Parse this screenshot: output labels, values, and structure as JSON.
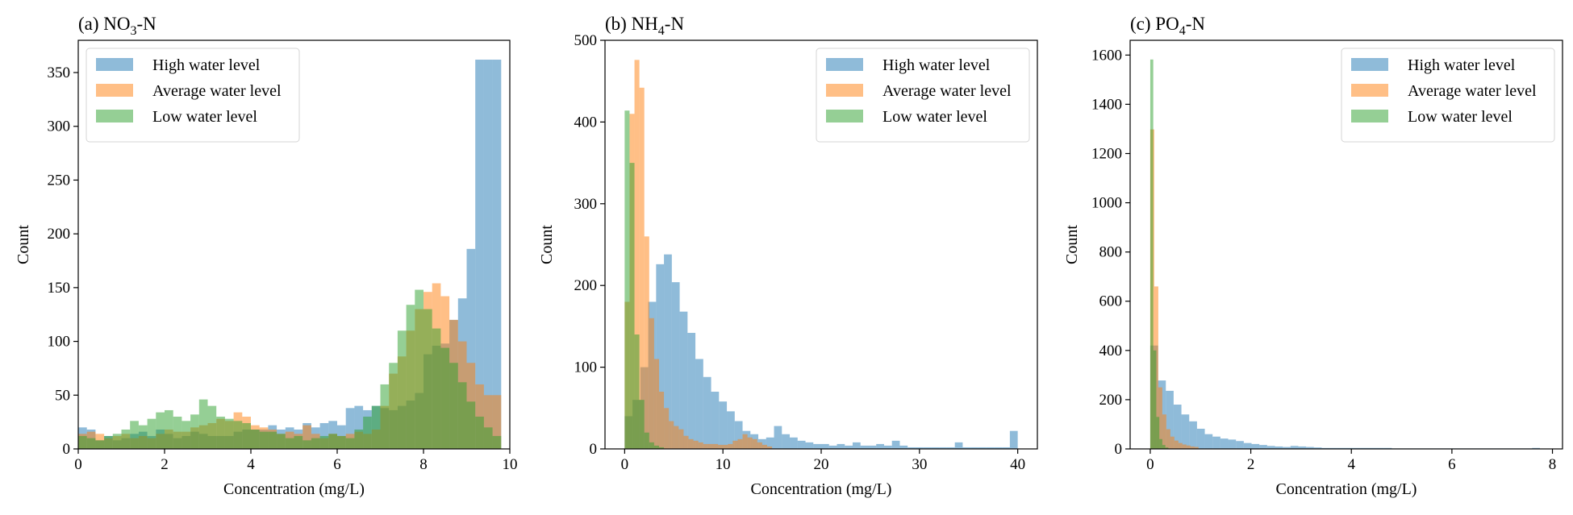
{
  "figure": {
    "colors": {
      "high": "#1f77b4",
      "average": "#ff7f0e",
      "low": "#2ca02c"
    },
    "bar_opacity": 0.5
  },
  "chart_data": [
    {
      "type": "histogram",
      "title_prefix": "(a) NO",
      "title_sub": "3",
      "title_suffix": "-N",
      "xlabel": "Concentration (mg/L)",
      "ylabel": "Count",
      "xlim": [
        0,
        10
      ],
      "ylim": [
        0,
        380
      ],
      "xticks": [
        0,
        2,
        4,
        6,
        8,
        10
      ],
      "yticks": [
        0,
        50,
        100,
        150,
        200,
        250,
        300,
        350
      ],
      "legend_position": "top-left",
      "grid": false,
      "series": [
        {
          "name": "High water level",
          "color_key": "high",
          "bin_start": 0.0,
          "bin_width": 0.2,
          "counts": [
            20,
            18,
            8,
            12,
            8,
            10,
            14,
            16,
            12,
            18,
            14,
            10,
            12,
            16,
            14,
            12,
            12,
            12,
            16,
            18,
            18,
            18,
            22,
            18,
            20,
            18,
            24,
            20,
            24,
            26,
            22,
            38,
            40,
            36,
            40,
            38,
            36,
            40,
            45,
            52,
            88,
            96,
            98,
            120,
            140,
            186,
            362,
            362,
            362,
            0
          ]
        },
        {
          "name": "Average water level",
          "color_key": "average",
          "bin_start": 0.0,
          "bin_width": 0.2,
          "counts": [
            14,
            16,
            14,
            10,
            12,
            14,
            10,
            12,
            10,
            14,
            18,
            16,
            16,
            20,
            22,
            24,
            28,
            26,
            34,
            30,
            22,
            20,
            18,
            14,
            16,
            14,
            22,
            14,
            10,
            14,
            12,
            14,
            16,
            14,
            18,
            40,
            70,
            86,
            110,
            130,
            146,
            154,
            142,
            120,
            100,
            80,
            60,
            50,
            50,
            0
          ]
        },
        {
          "name": "Low water level",
          "color_key": "low",
          "bin_start": 0.0,
          "bin_width": 0.2,
          "counts": [
            12,
            10,
            8,
            12,
            14,
            18,
            26,
            22,
            28,
            34,
            36,
            30,
            26,
            32,
            46,
            40,
            30,
            28,
            26,
            24,
            18,
            16,
            16,
            14,
            10,
            12,
            8,
            10,
            12,
            14,
            12,
            10,
            18,
            30,
            40,
            60,
            80,
            110,
            134,
            148,
            130,
            112,
            94,
            80,
            62,
            44,
            30,
            20,
            12,
            0
          ]
        }
      ]
    },
    {
      "type": "histogram",
      "title_prefix": "(b) NH",
      "title_sub": "4",
      "title_suffix": "-N",
      "xlabel": "Concentration (mg/L)",
      "ylabel": "Count",
      "xlim": [
        -2,
        42
      ],
      "ylim": [
        0,
        500
      ],
      "xticks": [
        0,
        10,
        20,
        30,
        40
      ],
      "yticks": [
        0,
        100,
        200,
        300,
        400,
        500
      ],
      "legend_position": "top-right",
      "grid": false,
      "series": [
        {
          "name": "High water level",
          "color_key": "high",
          "bin_start": 0.0,
          "bin_width": 0.8,
          "counts": [
            40,
            60,
            100,
            180,
            226,
            238,
            204,
            168,
            142,
            110,
            88,
            70,
            58,
            46,
            34,
            22,
            18,
            12,
            14,
            28,
            18,
            14,
            10,
            8,
            6,
            6,
            4,
            6,
            4,
            8,
            4,
            4,
            6,
            4,
            10,
            4,
            2,
            2,
            2,
            2,
            2,
            2,
            8,
            2,
            2,
            2,
            2,
            2,
            2,
            22
          ]
        },
        {
          "name": "Average water level",
          "color_key": "average",
          "bin_start": 0.0,
          "bin_width": 0.5,
          "counts": [
            180,
            410,
            476,
            442,
            260,
            160,
            110,
            70,
            50,
            34,
            28,
            24,
            16,
            12,
            10,
            8,
            6,
            6,
            6,
            5,
            5,
            6,
            10,
            12,
            18,
            14,
            12,
            8,
            5,
            3
          ]
        },
        {
          "name": "Low water level",
          "color_key": "low",
          "bin_start": 0.0,
          "bin_width": 0.5,
          "counts": [
            414,
            350,
            140,
            60,
            20,
            8,
            4,
            2
          ]
        }
      ]
    },
    {
      "type": "histogram",
      "title_prefix": "(c) PO",
      "title_sub": "4",
      "title_suffix": "-N",
      "xlabel": "Concentration (mg/L)",
      "ylabel": "Count",
      "xlim": [
        -0.4,
        8.2
      ],
      "ylim": [
        0,
        1660
      ],
      "xticks": [
        0,
        2,
        4,
        6,
        8
      ],
      "yticks": [
        0,
        200,
        400,
        600,
        800,
        1000,
        1200,
        1400,
        1600
      ],
      "legend_position": "top-right",
      "grid": false,
      "series": [
        {
          "name": "High water level",
          "color_key": "high",
          "bin_start": 0.0,
          "bin_width": 0.155,
          "counts": [
            420,
            278,
            236,
            180,
            140,
            112,
            82,
            60,
            50,
            42,
            38,
            32,
            24,
            20,
            16,
            12,
            10,
            8,
            12,
            10,
            8,
            6,
            4,
            4,
            4,
            4,
            4,
            4,
            4,
            4,
            4,
            2,
            2,
            2,
            2,
            2,
            2,
            2,
            2,
            2,
            2,
            2,
            2,
            2,
            2,
            2,
            2,
            2,
            2,
            4
          ]
        },
        {
          "name": "Average water level",
          "color_key": "average",
          "bin_start": 0.0,
          "bin_width": 0.08,
          "counts": [
            1298,
            660,
            250,
            140,
            80,
            50,
            34,
            24,
            18,
            14,
            10,
            8
          ]
        },
        {
          "name": "Low water level",
          "color_key": "low",
          "bin_start": 0.0,
          "bin_width": 0.06,
          "counts": [
            1582,
            400,
            130,
            40,
            16,
            6
          ]
        }
      ]
    }
  ]
}
